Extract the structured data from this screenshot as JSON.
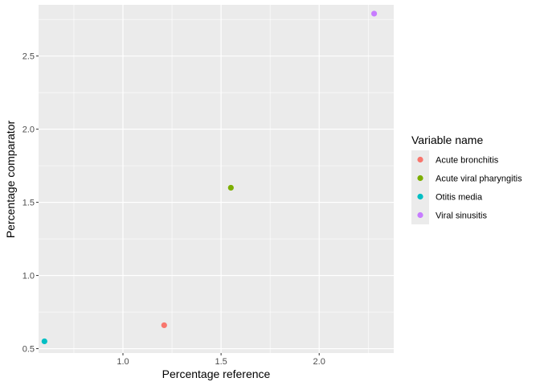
{
  "chart_data": {
    "type": "scatter",
    "xlabel": "Percentage reference",
    "ylabel": "Percentage comparator",
    "xlim": [
      0.57,
      2.38
    ],
    "ylim": [
      0.47,
      2.85
    ],
    "x_ticks": [
      1.0,
      1.5,
      2.0
    ],
    "x_tick_labels": [
      "1.0",
      "1.5",
      "2.0"
    ],
    "y_ticks": [
      0.5,
      1.0,
      1.5,
      2.0,
      2.5
    ],
    "y_tick_labels": [
      "0.5",
      "1.0",
      "1.5",
      "2.0",
      "2.5"
    ],
    "grid": true,
    "legend": {
      "title": "Variable name",
      "placement": "right"
    },
    "series": [
      {
        "name": "Acute bronchitis",
        "color": "#F8766D",
        "points": [
          {
            "x": 1.21,
            "y": 0.66
          }
        ]
      },
      {
        "name": "Acute viral pharyngitis",
        "color": "#7CAE00",
        "points": [
          {
            "x": 1.55,
            "y": 1.6
          }
        ]
      },
      {
        "name": "Otitis media",
        "color": "#00BFC4",
        "points": [
          {
            "x": 0.6,
            "y": 0.55
          }
        ]
      },
      {
        "name": "Viral sinusitis",
        "color": "#C77CFF",
        "points": [
          {
            "x": 2.28,
            "y": 2.79
          }
        ]
      }
    ]
  }
}
